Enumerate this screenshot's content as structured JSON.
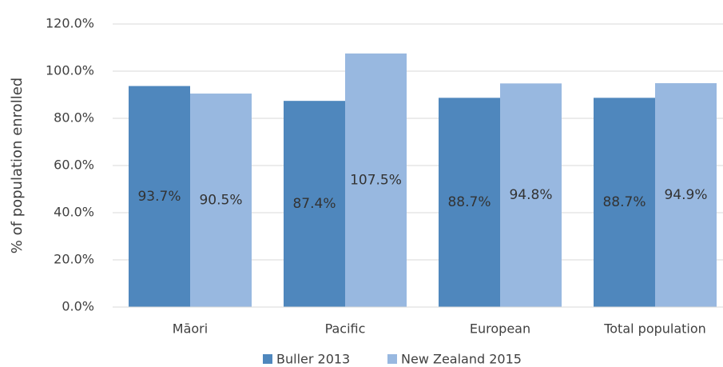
{
  "chart_data": {
    "type": "bar",
    "y_label": "% of population enrolled",
    "categories": [
      "Māori",
      "Pacific",
      "European",
      "Total population"
    ],
    "series": [
      {
        "name": "Buller 2013",
        "color": "#4f87bd",
        "values": [
          93.7,
          87.4,
          88.7,
          88.7
        ],
        "value_labels": [
          "93.7%",
          "87.4%",
          "88.7%",
          "88.7%"
        ]
      },
      {
        "name": "New Zealand 2015",
        "color": "#98b8e0",
        "values": [
          90.5,
          107.5,
          94.8,
          94.9
        ],
        "value_labels": [
          "90.5%",
          "107.5%",
          "94.8%",
          "94.9%"
        ]
      }
    ],
    "ylim": [
      0,
      120
    ],
    "yticks": [
      {
        "value": 0,
        "label": "0.0%"
      },
      {
        "value": 20,
        "label": "20.0%"
      },
      {
        "value": 40,
        "label": "40.0%"
      },
      {
        "value": 60,
        "label": "60.0%"
      },
      {
        "value": 80,
        "label": "80.0%"
      },
      {
        "value": 100,
        "label": "100.0%"
      },
      {
        "value": 120,
        "label": "120.0%"
      }
    ],
    "grid": true,
    "legend": "bottom"
  }
}
